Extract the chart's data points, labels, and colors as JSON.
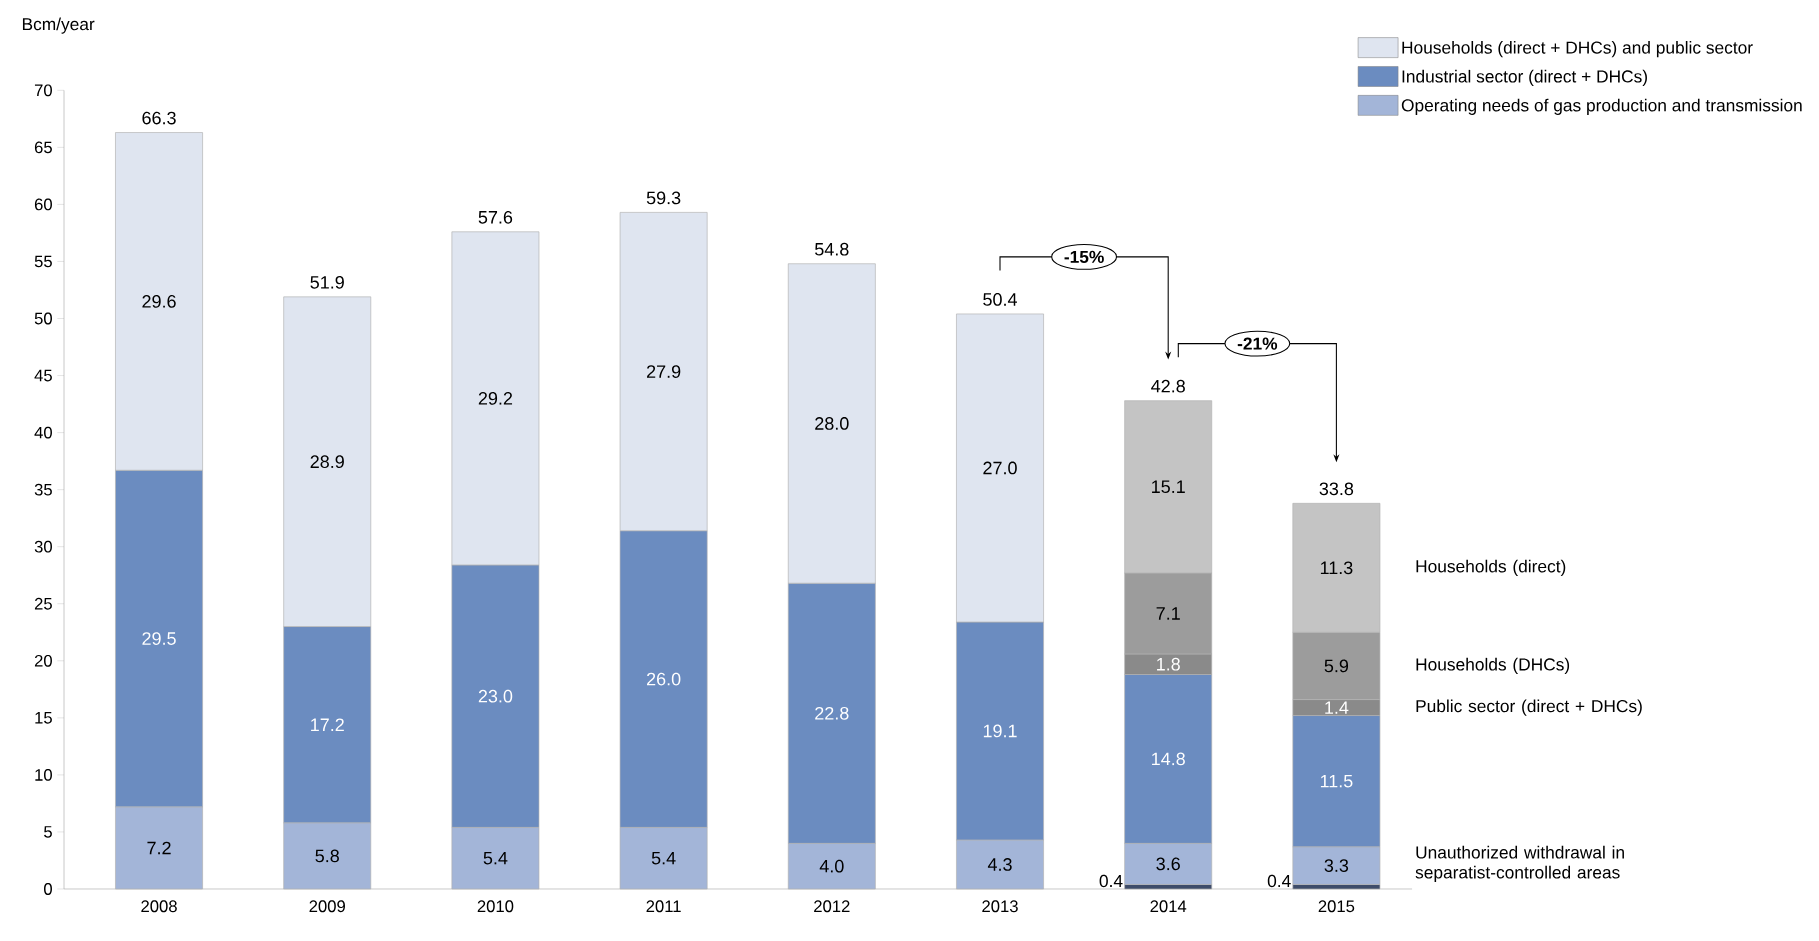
{
  "chart_data": {
    "type": "bar",
    "stacked": true,
    "ylabel": "Bcm/year",
    "categories": [
      "2008",
      "2009",
      "2010",
      "2011",
      "2012",
      "2013",
      "2014",
      "2015"
    ],
    "series": [
      {
        "name": "Unauthorized withdrawal in separatist-controlled areas",
        "color": "#3e4c6a",
        "values": [
          null,
          null,
          null,
          null,
          null,
          null,
          0.4,
          0.4
        ],
        "value_labels": [
          null,
          null,
          null,
          null,
          null,
          null,
          "0.4",
          "0.4"
        ]
      },
      {
        "name": "Operating needs of gas production and transmission",
        "color": "#a3b5d8",
        "values": [
          7.2,
          5.8,
          5.4,
          5.4,
          4.0,
          4.3,
          3.6,
          3.3
        ],
        "value_labels": [
          "7.2",
          "5.8",
          "5.4",
          "5.4",
          "4.0",
          "4.3",
          "3.6",
          "3.3"
        ]
      },
      {
        "name": "Industrial sector (direct + DHCs)",
        "color": "#6b8cc0",
        "values": [
          29.5,
          17.2,
          23.0,
          26.0,
          22.8,
          19.1,
          14.8,
          11.5
        ],
        "value_labels": [
          "29.5",
          "17.2",
          "23.0",
          "26.0",
          "22.8",
          "19.1",
          "14.8",
          "11.5"
        ]
      },
      {
        "name": "Public sector (direct + DHCs)",
        "color": "#8a8a8a",
        "values": [
          null,
          null,
          null,
          null,
          null,
          null,
          1.8,
          1.4
        ],
        "value_labels": [
          null,
          null,
          null,
          null,
          null,
          null,
          "1.8",
          "1.4"
        ]
      },
      {
        "name": "Households (DHCs)",
        "color": "#9c9c9c",
        "values": [
          null,
          null,
          null,
          null,
          null,
          null,
          7.1,
          5.9
        ],
        "value_labels": [
          null,
          null,
          null,
          null,
          null,
          null,
          "7.1",
          "5.9"
        ]
      },
      {
        "name": "Households (direct)",
        "color": "#c4c4c4",
        "values": [
          null,
          null,
          null,
          null,
          null,
          null,
          15.1,
          11.3
        ],
        "value_labels": [
          null,
          null,
          null,
          null,
          null,
          null,
          "15.1",
          "11.3"
        ]
      },
      {
        "name": "Households (direct + DHCs) and public sector",
        "color": "#dfe5f0",
        "values": [
          29.6,
          28.9,
          29.2,
          27.9,
          28.0,
          27.0,
          null,
          null
        ],
        "value_labels": [
          "29.6",
          "28.9",
          "29.2",
          "27.9",
          "28.0",
          "27.0",
          null,
          null
        ]
      }
    ],
    "totals": [
      "66.3",
      "51.9",
      "57.6",
      "59.3",
      "54.8",
      "50.4",
      "42.8",
      "33.8"
    ],
    "ylim": [
      0,
      70
    ],
    "yticks": [
      0,
      5,
      10,
      15,
      20,
      25,
      30,
      35,
      40,
      45,
      50,
      55,
      60,
      65,
      70
    ],
    "legend": "top right",
    "annotations": [
      "-15%",
      "-21%"
    ]
  }
}
